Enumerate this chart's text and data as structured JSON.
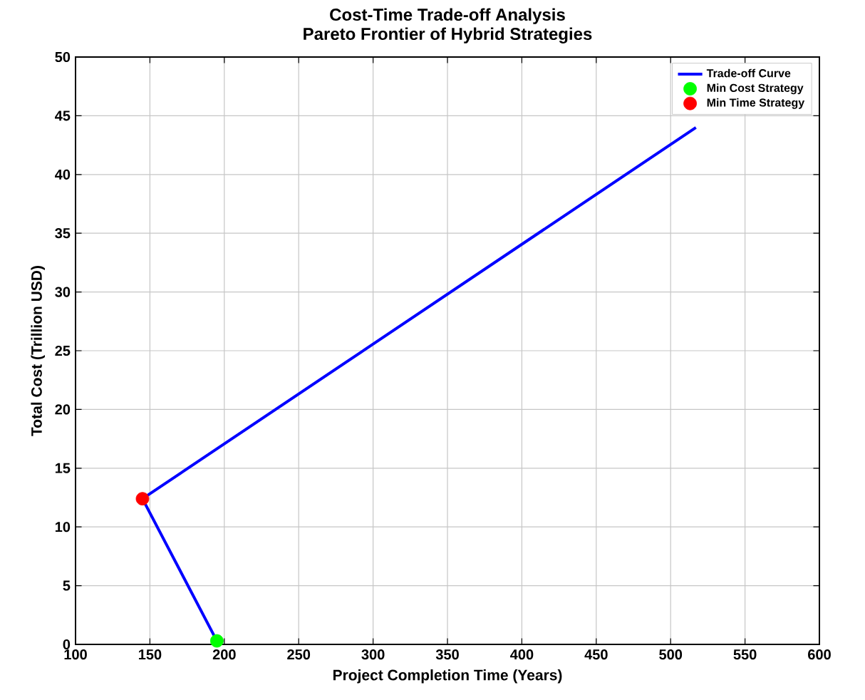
{
  "chart_data": {
    "type": "line",
    "title": "Cost-Time Trade-off Analysis",
    "subtitle": "Pareto Frontier of Hybrid Strategies",
    "xlabel": "Project Completion Time (Years)",
    "ylabel": "Total Cost (Trillion USD)",
    "xlim": [
      100,
      600
    ],
    "xticks": [
      100,
      150,
      200,
      250,
      300,
      350,
      400,
      450,
      500,
      550,
      600
    ],
    "ylim": [
      0,
      50
    ],
    "yticks": [
      0,
      5,
      10,
      15,
      20,
      25,
      30,
      35,
      40,
      45,
      50
    ],
    "grid": true,
    "legend": "top right",
    "series": [
      {
        "name": "Trade-off Curve",
        "color": "#0000ff",
        "x": [
          195,
          145,
          517
        ],
        "values": [
          0.3,
          12.4,
          44
        ]
      },
      {
        "name": "Min Cost Strategy",
        "type": "scatter",
        "marker": "circle",
        "color": "#00ff00",
        "x": [
          195
        ],
        "values": [
          0.3
        ]
      },
      {
        "name": "Min Time Strategy",
        "type": "scatter",
        "marker": "circle",
        "color": "#ff0000",
        "x": [
          145
        ],
        "values": [
          12.4
        ]
      }
    ]
  }
}
